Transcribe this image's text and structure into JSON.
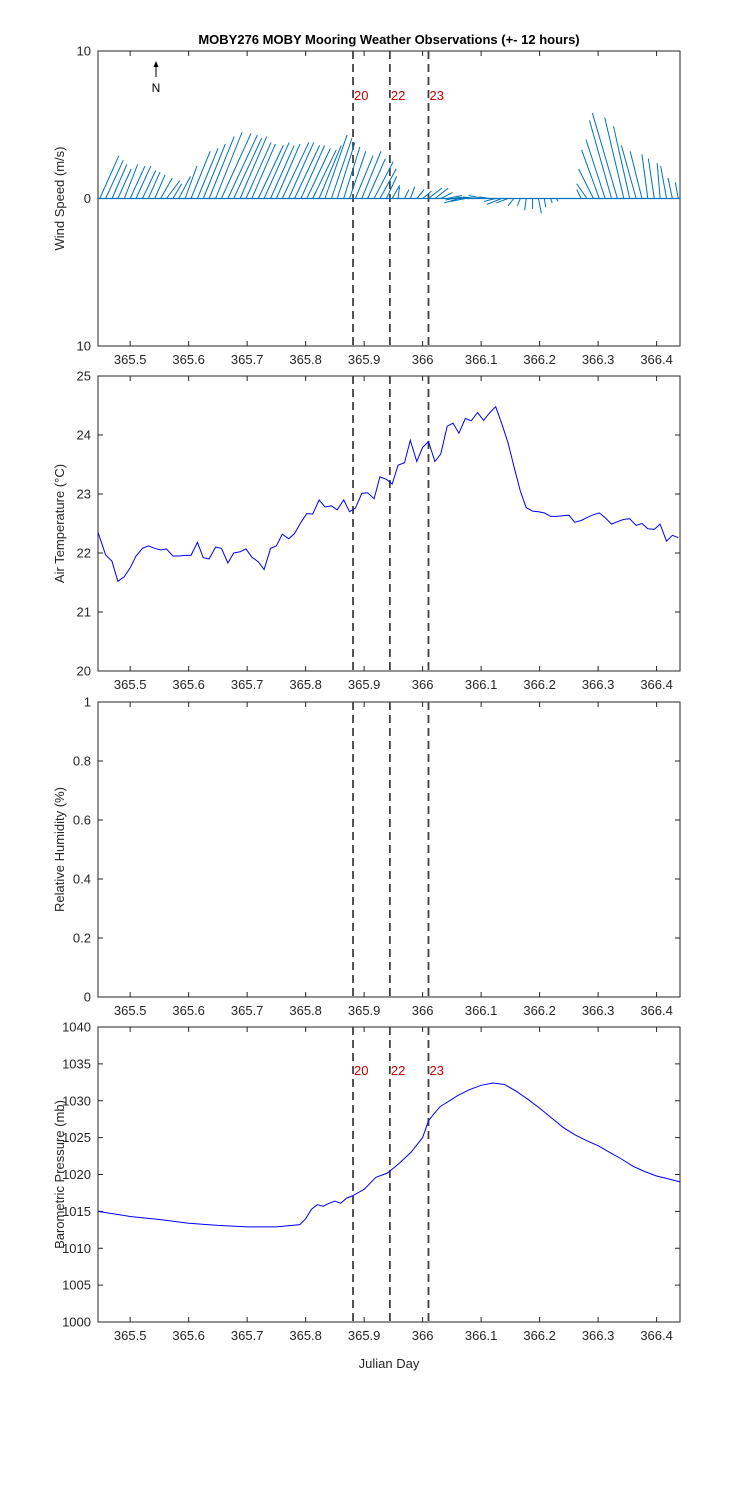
{
  "title": "MOBY276 MOBY Mooring Weather Observations (+- 12 hours)",
  "colors": {
    "wind": "#0072BD",
    "line": "#0000FF",
    "event": "#CC0000",
    "vline": "#404040",
    "axis": "#262626"
  },
  "xlabel": "Julian Day",
  "xlim": [
    365.445,
    366.44
  ],
  "xticks": [
    365.5,
    365.6,
    365.7,
    365.8,
    365.9,
    366,
    366.1,
    366.2,
    366.3,
    366.4
  ],
  "xtick_labels": [
    "365.5",
    "365.6",
    "365.7",
    "365.8",
    "365.9",
    "366",
    "366.1",
    "366.2",
    "366.3",
    "366.4"
  ],
  "event_lines": [
    365.881,
    365.944,
    366.01
  ],
  "event_labels": [
    "20",
    "22",
    "23"
  ],
  "north_label": "N",
  "chart_data": [
    {
      "type": "quiver",
      "ylabel": "Wind Speed (m/s)",
      "ylim": [
        -10,
        10
      ],
      "yticks": [
        -10,
        0,
        10
      ],
      "ytick_labels": [
        "10",
        "0",
        "10"
      ],
      "x": [
        365.448,
        365.458,
        365.469,
        365.479,
        365.49,
        365.5,
        365.51,
        365.521,
        365.531,
        365.542,
        365.552,
        365.562,
        365.573,
        365.583,
        365.594,
        365.604,
        365.615,
        365.625,
        365.635,
        365.646,
        365.656,
        365.667,
        365.677,
        365.688,
        365.698,
        365.708,
        365.719,
        365.729,
        365.74,
        365.75,
        365.76,
        365.771,
        365.781,
        365.792,
        365.802,
        365.812,
        365.823,
        365.833,
        365.844,
        365.854,
        365.865,
        365.875,
        365.885,
        365.896,
        365.906,
        365.917,
        365.927,
        365.938,
        365.948,
        365.958,
        365.969,
        365.979,
        365.99,
        366,
        366.01,
        366.021,
        366.031,
        366.042,
        366.052,
        366.062,
        366.073,
        366.083,
        366.094,
        366.104,
        366.115,
        366.125,
        366.135,
        366.146,
        366.156,
        366.167,
        366.177,
        366.188,
        366.198,
        366.208,
        366.219,
        366.229,
        366.24,
        366.25,
        366.26,
        366.271,
        366.281,
        366.292,
        366.302,
        366.312,
        366.323,
        366.333,
        366.344,
        366.354,
        366.365,
        366.375,
        366.385,
        366.396,
        366.406,
        366.417,
        366.427,
        366.437
      ],
      "u": [
        1.3,
        1.2,
        1.0,
        0.9,
        0.9,
        1.0,
        1.0,
        0.9,
        0.8,
        0.7,
        0.8,
        0.9,
        0.6,
        0.8,
        0.8,
        1.3,
        1.4,
        1.5,
        1.7,
        1.8,
        2.0,
        2.0,
        1.9,
        1.8,
        1.7,
        1.6,
        1.7,
        1.7,
        1.6,
        1.6,
        1.8,
        1.7,
        1.7,
        1.6,
        1.6,
        1.6,
        1.5,
        1.5,
        1.4,
        1.2,
        1.1,
        1.1,
        1.2,
        1.3,
        1.2,
        1.3,
        1.1,
        0.7,
        0.5,
        0.1,
        0.3,
        0.3,
        0.5,
        0.6,
        0.9,
        0.9,
        0.8,
        1.0,
        -0.5,
        -1.0,
        -1.0,
        -1.1,
        -1.0,
        -1.0,
        -0.7,
        -0.8,
        -1.0,
        -0.8,
        -0.4,
        -0.2,
        -0.1,
        0.0,
        0.2,
        0.1,
        0.1,
        0.1,
        0.2,
        0.0,
        0.0,
        -0.3,
        -0.7,
        -1.0,
        -1.2,
        -1.3,
        -1.5,
        -1.7,
        -1.3,
        -1.1,
        -1.0,
        -0.8,
        -0.4,
        -0.4,
        -0.2,
        -0.4,
        -0.3,
        -0.2
      ],
      "v": [
        2.9,
        2.6,
        2.3,
        2.0,
        2.3,
        2.2,
        2.2,
        1.9,
        1.8,
        1.6,
        1.4,
        1.2,
        1.0,
        1.5,
        2.2,
        3.2,
        3.4,
        3.7,
        4.2,
        4.5,
        4.4,
        4.3,
        4.1,
        4.2,
        3.8,
        3.7,
        3.6,
        3.8,
        3.6,
        3.7,
        3.8,
        3.8,
        3.6,
        3.6,
        3.4,
        3.3,
        3.6,
        4.3,
        4.1,
        3.8,
        3.5,
        3.2,
        2.9,
        3.2,
        2.7,
        2.5,
        2.0,
        1.5,
        0.9,
        0.8,
        0.6,
        0.8,
        0.6,
        0.5,
        0.7,
        0.7,
        0.4,
        0.2,
        -0.1,
        -0.3,
        -0.2,
        0.1,
        0.1,
        0.2,
        0.1,
        -0.2,
        -0.4,
        -0.3,
        -0.5,
        -0.5,
        -0.8,
        -0.7,
        -1.0,
        -0.6,
        -0.3,
        -0.2,
        0.0,
        0.0,
        0.0,
        0.6,
        1.0,
        2.0,
        3.3,
        4.0,
        5.3,
        5.8,
        5.5,
        4.9,
        3.6,
        3.2,
        3.0,
        2.7,
        2.4,
        2.2,
        1.4,
        1.1
      ]
    },
    {
      "type": "line",
      "ylabel": "Air Temperature (°C)",
      "ylim": [
        20,
        25
      ],
      "yticks": [
        20,
        21,
        22,
        23,
        24,
        25
      ],
      "ytick_labels": [
        "20",
        "21",
        "22",
        "23",
        "24",
        "25"
      ],
      "x": [
        365.445,
        365.458,
        365.469,
        365.479,
        365.49,
        365.5,
        365.51,
        365.521,
        365.531,
        365.542,
        365.552,
        365.562,
        365.573,
        365.583,
        365.594,
        365.604,
        365.615,
        365.625,
        365.635,
        365.646,
        365.656,
        365.667,
        365.677,
        365.688,
        365.698,
        365.708,
        365.719,
        365.729,
        365.74,
        365.75,
        365.76,
        365.771,
        365.781,
        365.792,
        365.802,
        365.812,
        365.823,
        365.833,
        365.844,
        365.854,
        365.865,
        365.875,
        365.885,
        365.896,
        365.906,
        365.917,
        365.927,
        365.938,
        365.948,
        365.958,
        365.969,
        365.979,
        365.99,
        366,
        366.01,
        366.021,
        366.031,
        366.042,
        366.052,
        366.062,
        366.073,
        366.083,
        366.094,
        366.104,
        366.115,
        366.125,
        366.135,
        366.146,
        366.156,
        366.167,
        366.177,
        366.188,
        366.198,
        366.208,
        366.219,
        366.229,
        366.24,
        366.25,
        366.26,
        366.271,
        366.281,
        366.292,
        366.302,
        366.312,
        366.323,
        366.333,
        366.344,
        366.354,
        366.365,
        366.375,
        366.385,
        366.396,
        366.406,
        366.417,
        366.427,
        366.437
      ],
      "y": [
        22.35,
        21.97,
        21.86,
        21.52,
        21.6,
        21.75,
        21.95,
        22.08,
        22.12,
        22.08,
        22.05,
        22.07,
        21.95,
        21.95,
        21.96,
        21.96,
        22.18,
        21.92,
        21.9,
        22.1,
        22.08,
        21.83,
        22.0,
        22.02,
        22.07,
        21.93,
        21.85,
        21.72,
        22.08,
        22.12,
        22.32,
        22.24,
        22.33,
        22.52,
        22.67,
        22.66,
        22.9,
        22.78,
        22.8,
        22.73,
        22.9,
        22.7,
        22.76,
        23.01,
        23.02,
        22.92,
        23.29,
        23.25,
        23.17,
        23.49,
        23.53,
        23.91,
        23.55,
        23.79,
        23.89,
        23.55,
        23.68,
        24.15,
        24.2,
        24.03,
        24.28,
        24.24,
        24.38,
        24.25,
        24.38,
        24.48,
        24.2,
        23.87,
        23.47,
        23.05,
        22.77,
        22.71,
        22.7,
        22.68,
        22.62,
        22.62,
        22.63,
        22.64,
        22.52,
        22.55,
        22.6,
        22.65,
        22.68,
        22.6,
        22.49,
        22.53,
        22.57,
        22.58,
        22.47,
        22.5,
        22.41,
        22.4,
        22.49,
        22.2,
        22.3,
        22.26
      ]
    },
    {
      "type": "line",
      "ylabel": "Relative Humidity (%)",
      "ylim": [
        0,
        1
      ],
      "yticks": [
        0,
        0.2,
        0.4,
        0.6,
        0.8,
        1
      ],
      "ytick_labels": [
        "0",
        "0.2",
        "0.4",
        "0.6",
        "0.8",
        "1"
      ],
      "x": [],
      "y": []
    },
    {
      "type": "line",
      "ylabel": "Barometric Pressure (mb)",
      "ylim": [
        1000,
        1040
      ],
      "yticks": [
        1000,
        1005,
        1010,
        1015,
        1020,
        1025,
        1030,
        1035,
        1040
      ],
      "ytick_labels": [
        "1000",
        "1005",
        "1010",
        "1015",
        "1020",
        "1025",
        "1030",
        "1035",
        "1040"
      ],
      "x": [
        365.445,
        365.5,
        365.55,
        365.6,
        365.65,
        365.7,
        365.75,
        365.79,
        365.8,
        365.81,
        365.82,
        365.83,
        365.84,
        365.85,
        365.86,
        365.87,
        365.88,
        365.9,
        365.92,
        365.94,
        365.96,
        365.98,
        366.0,
        366.01,
        366.02,
        366.03,
        366.04,
        366.06,
        366.08,
        366.1,
        366.12,
        366.14,
        366.16,
        366.18,
        366.2,
        366.22,
        366.24,
        366.26,
        366.28,
        366.3,
        366.32,
        366.34,
        366.36,
        366.38,
        366.4,
        366.42,
        366.44
      ],
      "y": [
        1015,
        1014.3,
        1013.9,
        1013.4,
        1013.1,
        1012.9,
        1012.9,
        1013.2,
        1014.0,
        1015.3,
        1015.9,
        1015.7,
        1016.1,
        1016.4,
        1016.1,
        1016.8,
        1017.1,
        1018.0,
        1019.6,
        1020.2,
        1021.5,
        1023.0,
        1025.0,
        1027.3,
        1028.3,
        1029.2,
        1029.7,
        1030.7,
        1031.5,
        1032.1,
        1032.4,
        1032.2,
        1031.3,
        1030.2,
        1029.0,
        1027.7,
        1026.4,
        1025.4,
        1024.6,
        1023.9,
        1023.0,
        1022.1,
        1021.1,
        1020.4,
        1019.8,
        1019.4,
        1019.0
      ]
    }
  ]
}
